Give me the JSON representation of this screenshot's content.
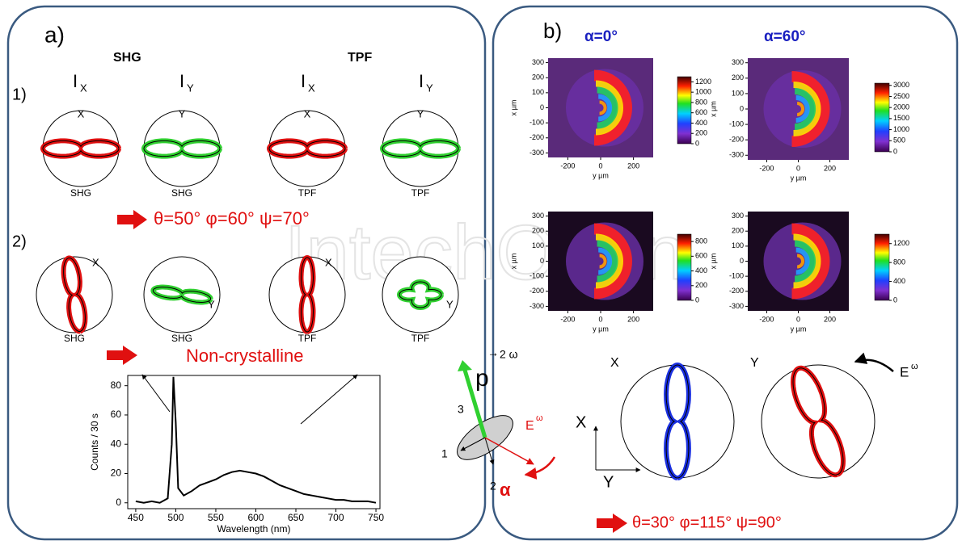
{
  "watermark": "IntechOpen",
  "panel_a": {
    "label": "a)",
    "shg_title": "SHG",
    "tpf_title": "TPF",
    "column_headers": [
      {
        "text": "I",
        "sub": "X"
      },
      {
        "text": "I",
        "sub": "Y"
      },
      {
        "text": "I",
        "sub": "X"
      },
      {
        "text": "I",
        "sub": "Y"
      }
    ],
    "row1": {
      "label": "1)",
      "plots": [
        {
          "axis": "X",
          "name": "SHG"
        },
        {
          "axis": "Y",
          "name": "SHG"
        },
        {
          "axis": "X",
          "name": "TPF"
        },
        {
          "axis": "Y",
          "name": "TPF"
        }
      ]
    },
    "result1": "θ=50° φ=60° ψ=70°",
    "row2": {
      "label": "2)",
      "plots": [
        {
          "axis": "X",
          "name": "SHG"
        },
        {
          "axis": "Y",
          "name": "SHG"
        },
        {
          "axis": "X",
          "name": "TPF"
        },
        {
          "axis": "Y",
          "name": "TPF"
        }
      ]
    },
    "result2": "Non-crystalline",
    "spectrum": {
      "type": "line",
      "xlabel": "Wavelength (nm)",
      "ylabel": "Counts / 30 s",
      "xlim": [
        440,
        755
      ],
      "ylim": [
        -4,
        87
      ],
      "xticks": [
        450,
        500,
        550,
        600,
        650,
        700,
        750
      ],
      "yticks": [
        0,
        20,
        40,
        60,
        80
      ],
      "color": "#000000",
      "x": [
        450,
        460,
        470,
        480,
        490,
        495,
        497,
        500,
        503,
        510,
        520,
        530,
        540,
        550,
        560,
        570,
        580,
        590,
        600,
        610,
        620,
        630,
        640,
        650,
        660,
        670,
        680,
        690,
        700,
        710,
        720,
        730,
        740,
        750
      ],
      "values": [
        1,
        0,
        1,
        0,
        3,
        40,
        86,
        55,
        10,
        5,
        8,
        12,
        14,
        16,
        19,
        21,
        22,
        21,
        20,
        18,
        15,
        12,
        10,
        8,
        6,
        5,
        4,
        3,
        2,
        2,
        1,
        1,
        1,
        0
      ]
    }
  },
  "panel_b": {
    "label": "b)",
    "alpha_headers": [
      "α=0°",
      "α=60°"
    ],
    "map_xlabel": "y µm",
    "map_ylabel": "x µm",
    "map_xlim": [
      -320,
      320
    ],
    "map_ylim": [
      -330,
      330
    ],
    "map_xticks": [
      -200,
      0,
      200
    ],
    "map_yticks": [
      -300,
      -200,
      -100,
      0,
      100,
      200,
      300
    ],
    "maps": [
      {
        "colorbar_lim": [
          0,
          1300
        ],
        "colorbar_ticks": [
          0,
          200,
          400,
          600,
          800,
          1000,
          1200
        ]
      },
      {
        "colorbar_lim": [
          0,
          3100
        ],
        "colorbar_ticks": [
          0,
          500,
          1000,
          1500,
          2000,
          2500,
          3000
        ]
      },
      {
        "colorbar_lim": [
          0,
          900
        ],
        "colorbar_ticks": [
          0,
          200,
          400,
          600,
          800
        ]
      },
      {
        "colorbar_lim": [
          0,
          1400
        ],
        "colorbar_ticks": [
          0,
          400,
          800,
          1200
        ]
      }
    ],
    "diagram": {
      "p": "p",
      "p_label": "2 ω",
      "axis3": "3",
      "axis1": "1",
      "axis2": "2",
      "alpha": "α",
      "field": "E",
      "field_sup": "ω"
    },
    "frame": {
      "x": "X",
      "y": "Y"
    },
    "polar_labels": [
      "X",
      "Y"
    ],
    "polar_field": "E",
    "polar_field_sup": "ω",
    "result": "θ=30° φ=115° ψ=90°"
  }
}
